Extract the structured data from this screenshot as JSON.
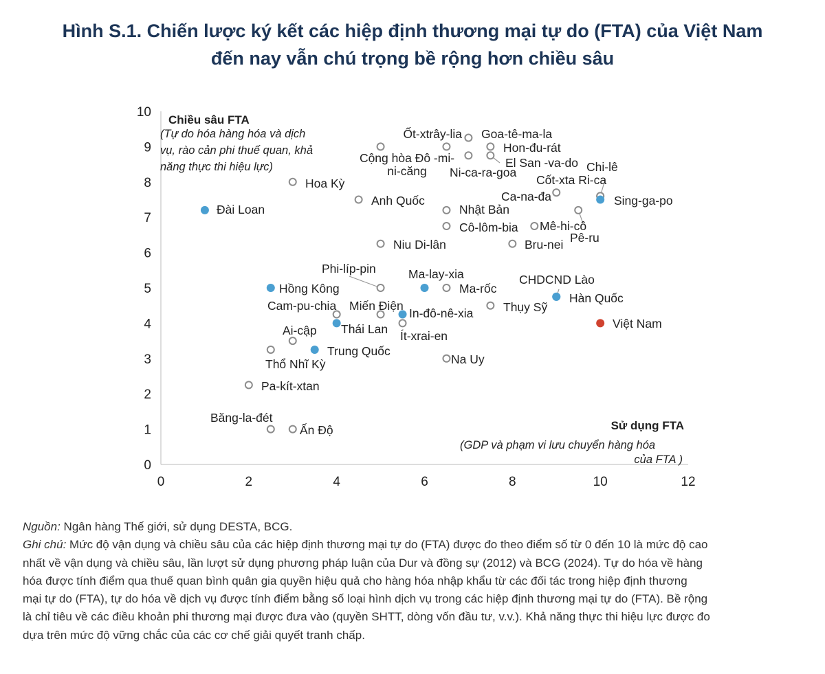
{
  "title_lines": [
    "Hình S.1. Chiến lược ký kết các hiệp định thương mại tự do (FTA) của Việt Nam",
    "đến nay vẫn chú trọng bề rộng hơn chiều sâu"
  ],
  "colors": {
    "hollow": "#8c8c8c",
    "blue": "#4a9fd1",
    "red": "#d0422f",
    "title": "#1c3557"
  },
  "chart_data": {
    "type": "scatter",
    "xlim": [
      0,
      12
    ],
    "ylim": [
      0,
      10
    ],
    "xticks": [
      0,
      2,
      4,
      6,
      8,
      10,
      12
    ],
    "yticks": [
      0,
      1,
      2,
      3,
      4,
      5,
      6,
      7,
      8,
      9,
      10
    ],
    "ylabel": "Chiều sâu FTA",
    "ylabel_note_lines": [
      "(Tự do hóa hàng hóa và dịch",
      "vụ, rào cản phi thuế quan, khả",
      "năng thực thi hiệu lực)"
    ],
    "xlabel": "Sử dụng FTA",
    "xlabel_note_lines": [
      "(GDP và phạm vi lưu chuyển hàng hóa",
      "của FTA )"
    ],
    "grid": false,
    "points": [
      {
        "label": "Đài Loan",
        "x": 1.0,
        "y": 7.2,
        "style": "blue"
      },
      {
        "label": "Hoa Kỳ",
        "x": 3.0,
        "y": 8.0,
        "style": "hollow"
      },
      {
        "label": "Anh Quốc",
        "x": 4.5,
        "y": 7.5,
        "style": "hollow"
      },
      {
        "label": "Cộng hòa Đô-mi-ni-căng",
        "label_lines": [
          "Cộng hòa Đô -mi-",
          "ni-căng"
        ],
        "x": 5.0,
        "y": 9.0,
        "style": "hollow"
      },
      {
        "label": "Ốt-xtrây-lia",
        "x": 6.5,
        "y": 9.0,
        "style": "hollow"
      },
      {
        "label": "Goa-tê-ma-la",
        "x": 7.0,
        "y": 9.25,
        "style": "hollow"
      },
      {
        "label": "Ni-ca-ra-goa",
        "x": 7.0,
        "y": 8.75,
        "style": "hollow"
      },
      {
        "label": "Hon-đu-rát",
        "x": 7.5,
        "y": 9.0,
        "style": "hollow"
      },
      {
        "label": "El San -va-do",
        "x": 7.5,
        "y": 8.75,
        "style": "hollow"
      },
      {
        "label": "Ca-na-đa",
        "x": 9.0,
        "y": 7.7,
        "style": "hollow"
      },
      {
        "label": "Cốt-xta Ri-ca",
        "x": 10.0,
        "y": 7.6,
        "style": "hollow"
      },
      {
        "label": "Chi-lê",
        "x": 10.0,
        "y": 7.6,
        "style": "hollow"
      },
      {
        "label": "Sing-ga-po",
        "x": 10.0,
        "y": 7.5,
        "style": "blue"
      },
      {
        "label": "Nhật Bản",
        "x": 6.5,
        "y": 7.2,
        "style": "hollow"
      },
      {
        "label": "Pê-ru",
        "x": 9.5,
        "y": 7.2,
        "style": "hollow"
      },
      {
        "label": "Cô-lôm-bia",
        "x": 6.5,
        "y": 6.75,
        "style": "hollow"
      },
      {
        "label": "Mê-hi-cô",
        "x": 8.5,
        "y": 6.75,
        "style": "hollow"
      },
      {
        "label": "Niu Di-lân",
        "x": 5.0,
        "y": 6.25,
        "style": "hollow"
      },
      {
        "label": "Bru-nei",
        "x": 8.0,
        "y": 6.25,
        "style": "hollow"
      },
      {
        "label": "Hồng Kông",
        "x": 2.5,
        "y": 5.0,
        "style": "blue"
      },
      {
        "label": "Phi-líp-pin",
        "x": 5.0,
        "y": 5.0,
        "style": "hollow"
      },
      {
        "label": "Ma-lay-xia",
        "x": 6.0,
        "y": 5.0,
        "style": "blue"
      },
      {
        "label": "Ma-rốc",
        "x": 6.5,
        "y": 5.0,
        "style": "hollow"
      },
      {
        "label": "CHDCND Lào",
        "x": 9.0,
        "y": 4.75,
        "style": "blue"
      },
      {
        "label": "Hàn Quốc",
        "x": 9.0,
        "y": 4.75,
        "style": "blue"
      },
      {
        "label": "Thụy Sỹ",
        "x": 7.5,
        "y": 4.5,
        "style": "hollow"
      },
      {
        "label": "Cam-pu-chia",
        "x": 4.0,
        "y": 4.25,
        "style": "hollow"
      },
      {
        "label": "Miến Điện",
        "x": 5.0,
        "y": 4.25,
        "style": "hollow"
      },
      {
        "label": "In-đô-nê-xia",
        "x": 5.5,
        "y": 4.25,
        "style": "blue"
      },
      {
        "label": "Thái Lan",
        "x": 4.0,
        "y": 4.0,
        "style": "blue"
      },
      {
        "label": "Ít-xrai-en",
        "x": 5.5,
        "y": 4.0,
        "style": "hollow"
      },
      {
        "label": "Việt Nam",
        "x": 10.0,
        "y": 4.0,
        "style": "red"
      },
      {
        "label": "Ai-cập",
        "x": 3.0,
        "y": 3.5,
        "style": "hollow"
      },
      {
        "label": "Thổ Nhĩ Kỳ",
        "x": 2.5,
        "y": 3.25,
        "style": "hollow"
      },
      {
        "label": "Trung Quốc",
        "x": 3.5,
        "y": 3.25,
        "style": "blue"
      },
      {
        "label": "Na Uy",
        "x": 6.5,
        "y": 3.0,
        "style": "hollow"
      },
      {
        "label": "Pa-kít-xtan",
        "x": 2.0,
        "y": 2.25,
        "style": "hollow"
      },
      {
        "label": "Băng-la-đét",
        "x": 2.5,
        "y": 1.0,
        "style": "hollow"
      },
      {
        "label": "Ấn Độ",
        "x": 3.0,
        "y": 1.0,
        "style": "hollow"
      }
    ]
  },
  "footer": {
    "source_label": "Nguồn:",
    "source_text": " Ngân hàng Thế giới, sử dụng DESTA, BCG.",
    "note_label": "Ghi chú:",
    "note_lines": [
      " Mức độ vận dụng và chiều sâu của các hiệp định thương mại tự do (FTA) được đo theo điểm số từ 0 đến 10 là mức độ cao",
      "nhất về vận dụng và chiều sâu, lần lượt sử dụng phương pháp luận của Dur và đồng sự (2012) và BCG (2024). Tự do hóa về hàng",
      "hóa được tính điểm qua thuế quan bình quân gia quyền hiệu quả cho hàng hóa nhập khẩu từ các đối tác trong hiệp định thương",
      "mại tự do (FTA), tự do hóa về dịch vụ được tính điểm bằng số loại hình dịch vụ trong các hiệp định thương mại tự do (FTA). Bề rộng",
      "là chỉ tiêu về các điều khoản phi thương mại được đưa vào (quyền SHTT, dòng vốn đầu tư, v.v.). Khả năng thực thi hiệu lực được đo",
      "dựa trên mức độ vững chắc của các cơ chế giải quyết tranh chấp."
    ]
  }
}
